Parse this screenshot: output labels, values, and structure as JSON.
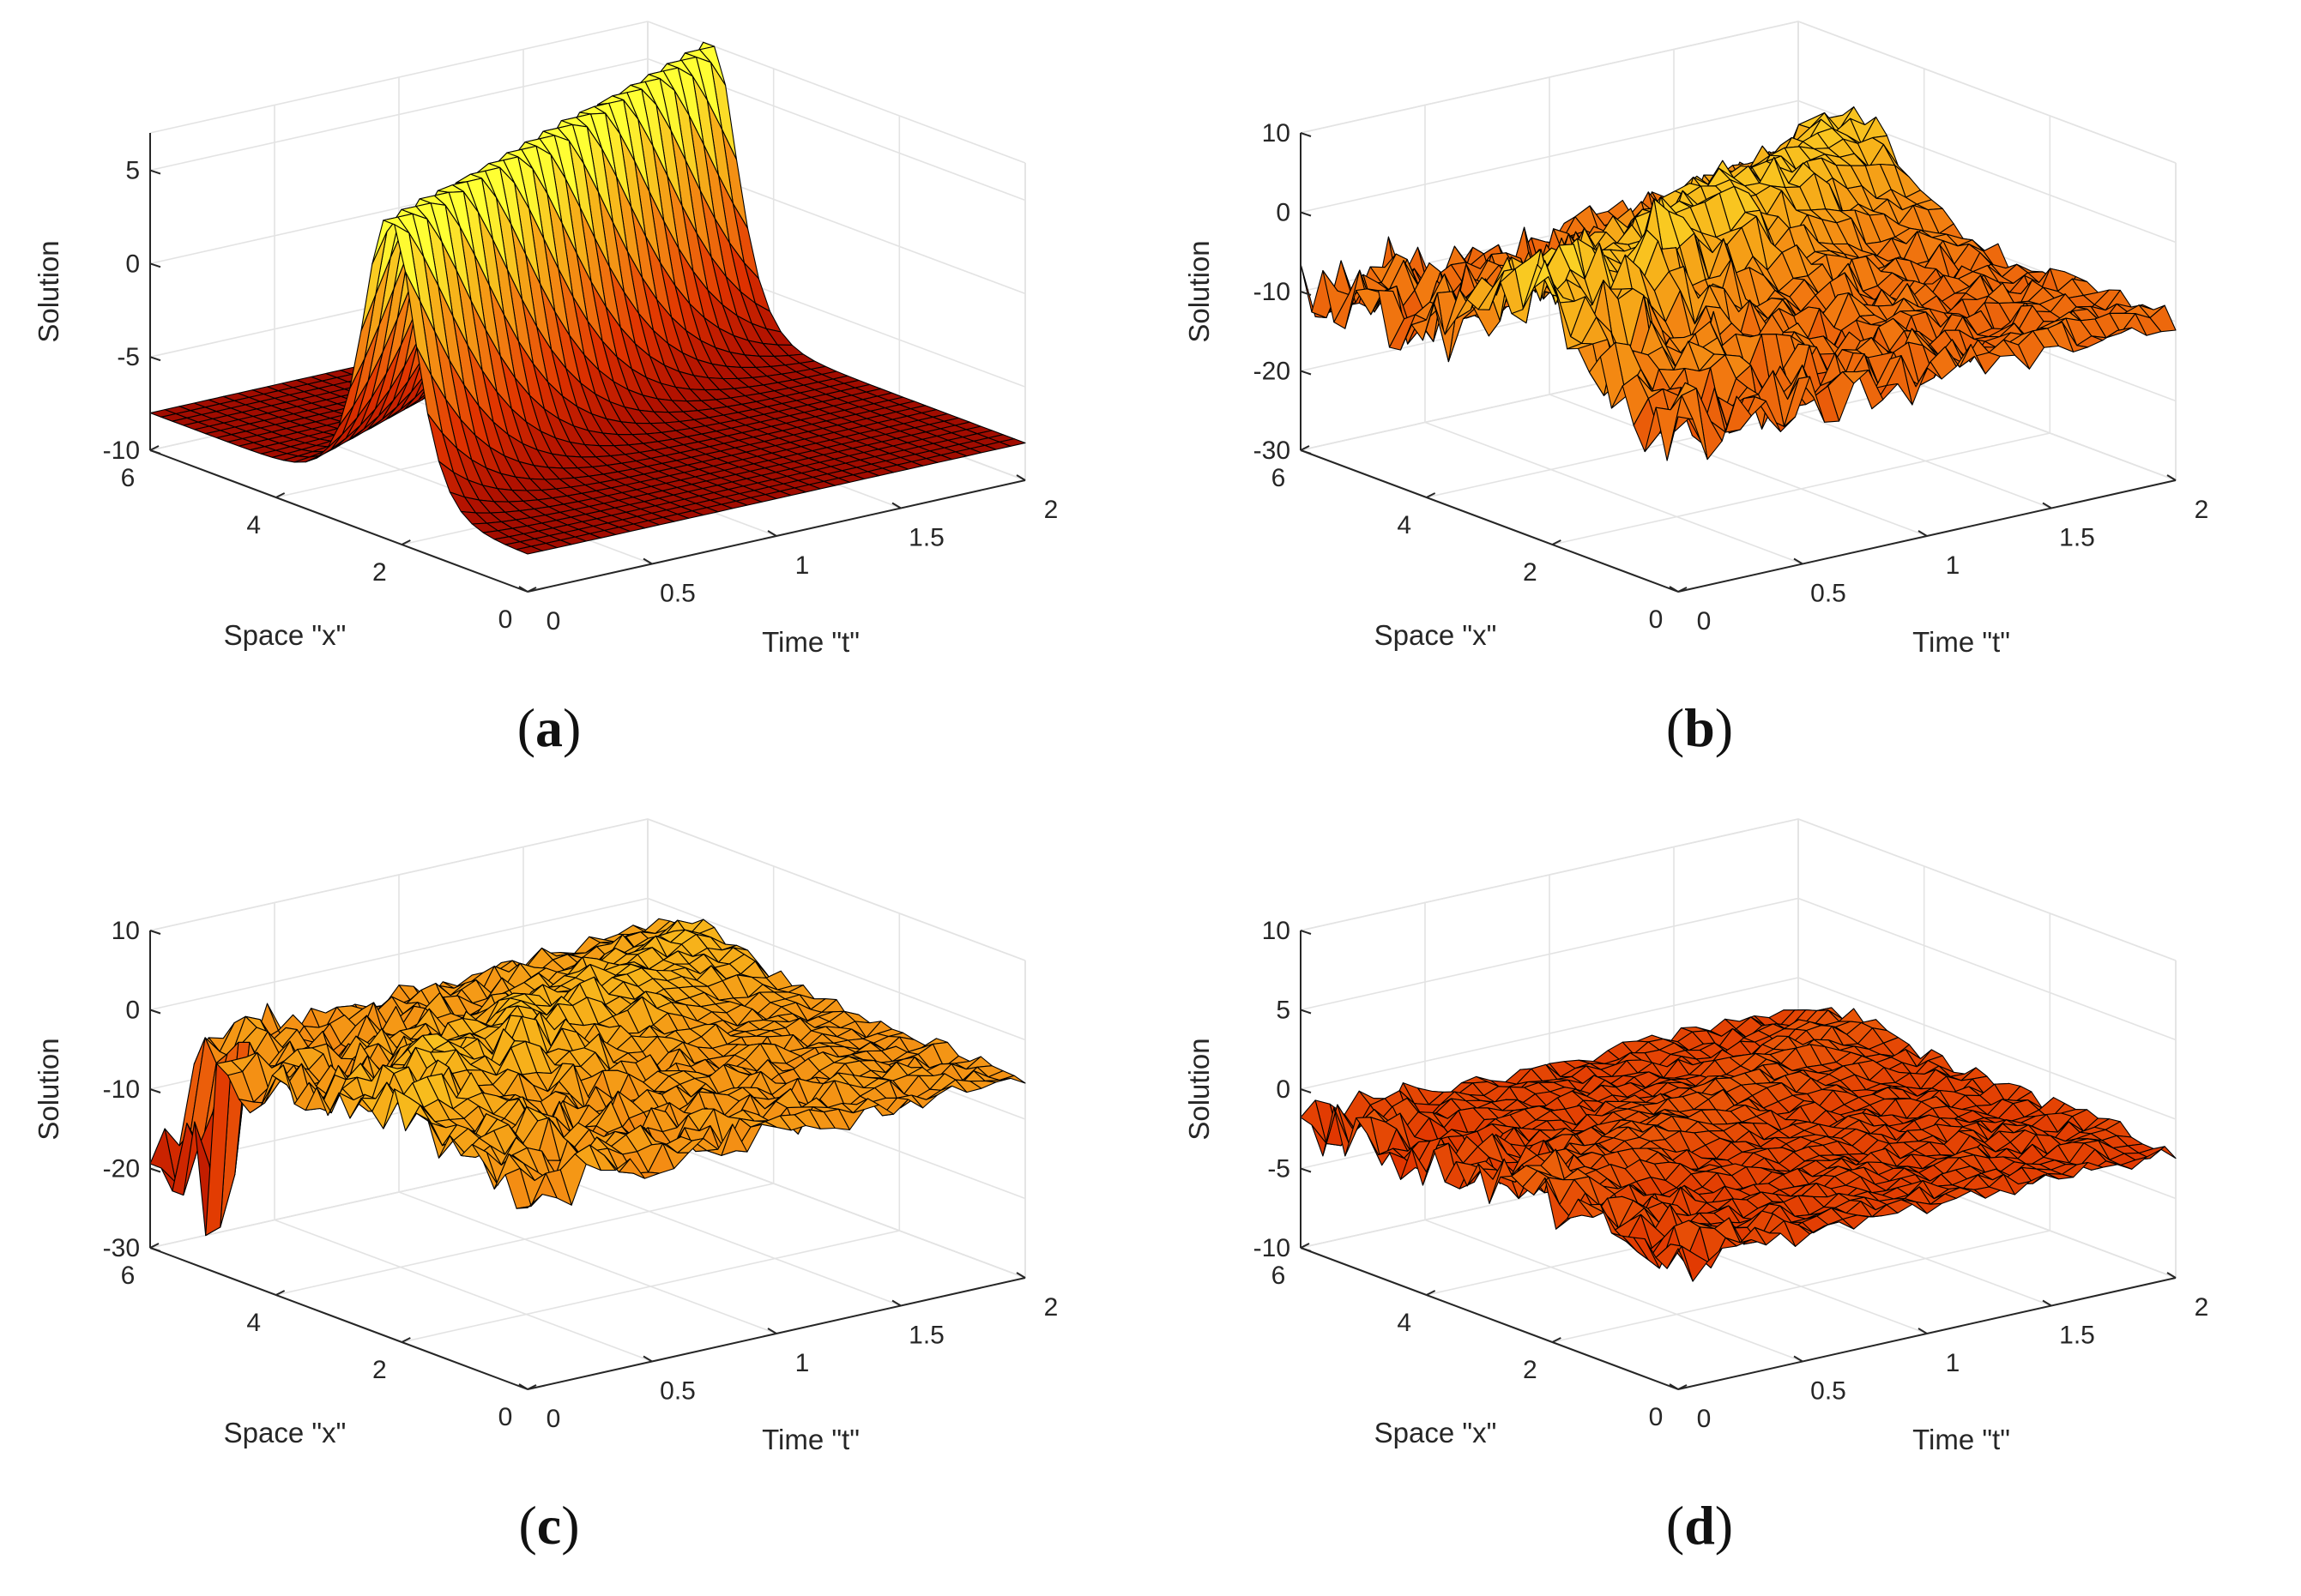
{
  "chart_data": [
    {
      "type": "surface",
      "panel": "a",
      "caption_letter": "a",
      "title": "",
      "xlabel": "Space \"x\"",
      "ylabel": "Time \"t\"",
      "zlabel": "Solution",
      "xlim": [
        0,
        6
      ],
      "tlim": [
        0,
        2
      ],
      "zlim": [
        -10,
        7
      ],
      "x_ticks": [
        "0",
        "2",
        "4",
        "6"
      ],
      "t_ticks": [
        "0",
        "0.5",
        "1",
        "1.5",
        "2"
      ],
      "z_ticks": [
        "-10",
        "-5",
        "0",
        "5"
      ],
      "z_tick_values": [
        -10,
        -5,
        0,
        5
      ],
      "surface": {
        "kind": "soliton",
        "base": -8,
        "peak": 7.7,
        "center_x": 2.2,
        "velocity": 1.4,
        "width": 0.55,
        "noise": 0
      }
    },
    {
      "type": "surface",
      "panel": "b",
      "caption_letter": "b",
      "title": "",
      "xlabel": "Space \"x\"",
      "ylabel": "Time \"t\"",
      "zlabel": "Solution",
      "xlim": [
        0,
        6
      ],
      "tlim": [
        0,
        2
      ],
      "zlim": [
        -30,
        10
      ],
      "x_ticks": [
        "0",
        "2",
        "4",
        "6"
      ],
      "t_ticks": [
        "0",
        "0.5",
        "1",
        "1.5",
        "2"
      ],
      "z_ticks": [
        "-30",
        "-20",
        "-10",
        "0",
        "10"
      ],
      "z_tick_values": [
        -30,
        -20,
        -10,
        0,
        10
      ],
      "surface": {
        "kind": "noisy",
        "base": -10,
        "peak": 12,
        "center_x": 2.4,
        "velocity": 1.3,
        "width": 0.9,
        "noise": 4.5
      }
    },
    {
      "type": "surface",
      "panel": "c",
      "caption_letter": "c",
      "title": "",
      "xlabel": "Space \"x\"",
      "ylabel": "Time \"t\"",
      "zlabel": "Solution",
      "xlim": [
        0,
        6
      ],
      "tlim": [
        0,
        2
      ],
      "zlim": [
        -30,
        10
      ],
      "x_ticks": [
        "0",
        "2",
        "4",
        "6"
      ],
      "t_ticks": [
        "0",
        "0.5",
        "1",
        "1.5",
        "2"
      ],
      "z_ticks": [
        "-30",
        "-20",
        "-10",
        "0",
        "10"
      ],
      "z_tick_values": [
        -30,
        -20,
        -10,
        0,
        10
      ],
      "surface": {
        "kind": "noisy",
        "base": -5,
        "peak": 3,
        "center_x": 2.4,
        "velocity": 1.3,
        "width": 1.0,
        "noise": 3.0,
        "edge_spike": -26
      }
    },
    {
      "type": "surface",
      "panel": "d",
      "caption_letter": "d",
      "title": "",
      "xlabel": "Space \"x\"",
      "ylabel": "Time \"t\"",
      "zlabel": "Solution",
      "xlim": [
        0,
        6
      ],
      "tlim": [
        0,
        2
      ],
      "zlim": [
        -10,
        10
      ],
      "x_ticks": [
        "0",
        "2",
        "4",
        "6"
      ],
      "t_ticks": [
        "0",
        "0.5",
        "1",
        "1.5",
        "2"
      ],
      "z_ticks": [
        "-10",
        "-5",
        "0",
        "5",
        "10"
      ],
      "z_tick_values": [
        -10,
        -5,
        0,
        5,
        10
      ],
      "surface": {
        "kind": "flat",
        "base": -2,
        "peak": 0,
        "center_x": 2.4,
        "velocity": 1.3,
        "width": 0.6,
        "noise": 1.8
      }
    }
  ],
  "colors": {
    "grid": "#e3e3e3",
    "axis": "#262626",
    "mesh_edge": "#000000",
    "colormap": [
      "#7f0000",
      "#b31200",
      "#e03300",
      "#f27a10",
      "#f7b31a",
      "#ffff33"
    ]
  }
}
